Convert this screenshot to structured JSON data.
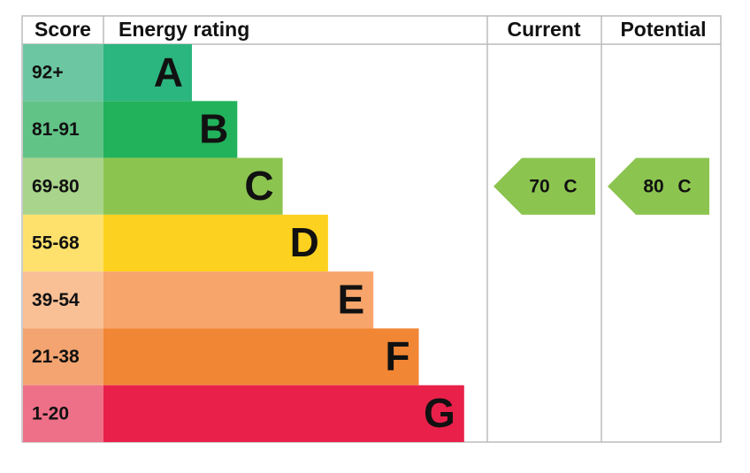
{
  "header": {
    "score": "Score",
    "rating": "Energy rating",
    "current": "Current",
    "potential": "Potential"
  },
  "rows": [
    {
      "range": "92+",
      "band": "A",
      "color": "#2bb67f",
      "range_color": "#6cc6a2"
    },
    {
      "range": "81-91",
      "band": "B",
      "color": "#22b25c",
      "range_color": "#62c387"
    },
    {
      "range": "69-80",
      "band": "C",
      "color": "#8cc450",
      "range_color": "#a9d48b"
    },
    {
      "range": "55-68",
      "band": "D",
      "color": "#fdd11f",
      "range_color": "#fde16c"
    },
    {
      "range": "39-54",
      "band": "E",
      "color": "#f7a56b",
      "range_color": "#f9c096"
    },
    {
      "range": "21-38",
      "band": "F",
      "color": "#f18634",
      "range_color": "#f4a470"
    },
    {
      "range": "1-20",
      "band": "G",
      "color": "#e9214a",
      "range_color": "#ee7088"
    }
  ],
  "current": {
    "score": 70,
    "band": "C"
  },
  "potential": {
    "score": 80,
    "band": "C"
  }
}
